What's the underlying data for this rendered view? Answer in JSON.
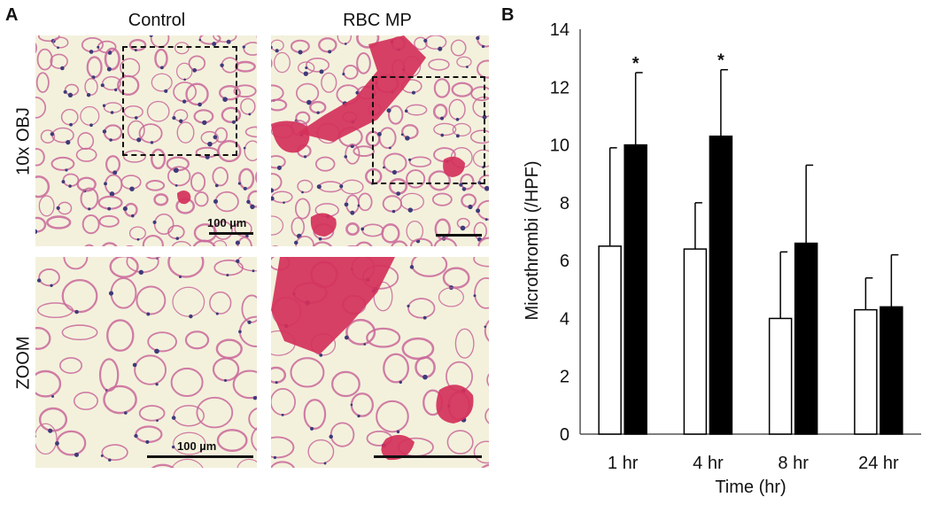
{
  "panel_a": {
    "letter": "A",
    "columns": [
      "Control",
      "RBC MP"
    ],
    "rows": [
      "10x OBJ",
      "ZOOM"
    ],
    "scale_bar_label": "100 µm"
  },
  "panel_b": {
    "letter": "B"
  },
  "colors": {
    "tissue_background": "#f3f1dc",
    "tissue_pink": "#c9679a",
    "nuclei": "#3f3a7a",
    "thrombus_red": "#d4315a",
    "bar_open": "#ffffff",
    "bar_filled": "#000000"
  },
  "chart_data": {
    "type": "bar",
    "categories": [
      "1 hr",
      "4 hr",
      "8 hr",
      "24 hr"
    ],
    "series": [
      {
        "values": [
          6.5,
          6.4,
          4.0,
          4.3
        ],
        "error": [
          3.4,
          1.6,
          2.3,
          1.1
        ],
        "fill": "#ffffff"
      },
      {
        "values": [
          10.0,
          10.3,
          6.6,
          4.4
        ],
        "error": [
          2.5,
          2.3,
          2.7,
          1.8
        ],
        "fill": "#000000"
      }
    ],
    "significance": [
      {
        "category": "1 hr",
        "series": 1,
        "label": "*"
      },
      {
        "category": "4 hr",
        "series": 1,
        "label": "*"
      }
    ],
    "xlabel": "Time (hr)",
    "ylabel": "Microthrombi (/HPF)",
    "ylim": [
      0,
      14
    ],
    "yticks": [
      0,
      2,
      4,
      6,
      8,
      10,
      12,
      14
    ],
    "grid": false
  }
}
